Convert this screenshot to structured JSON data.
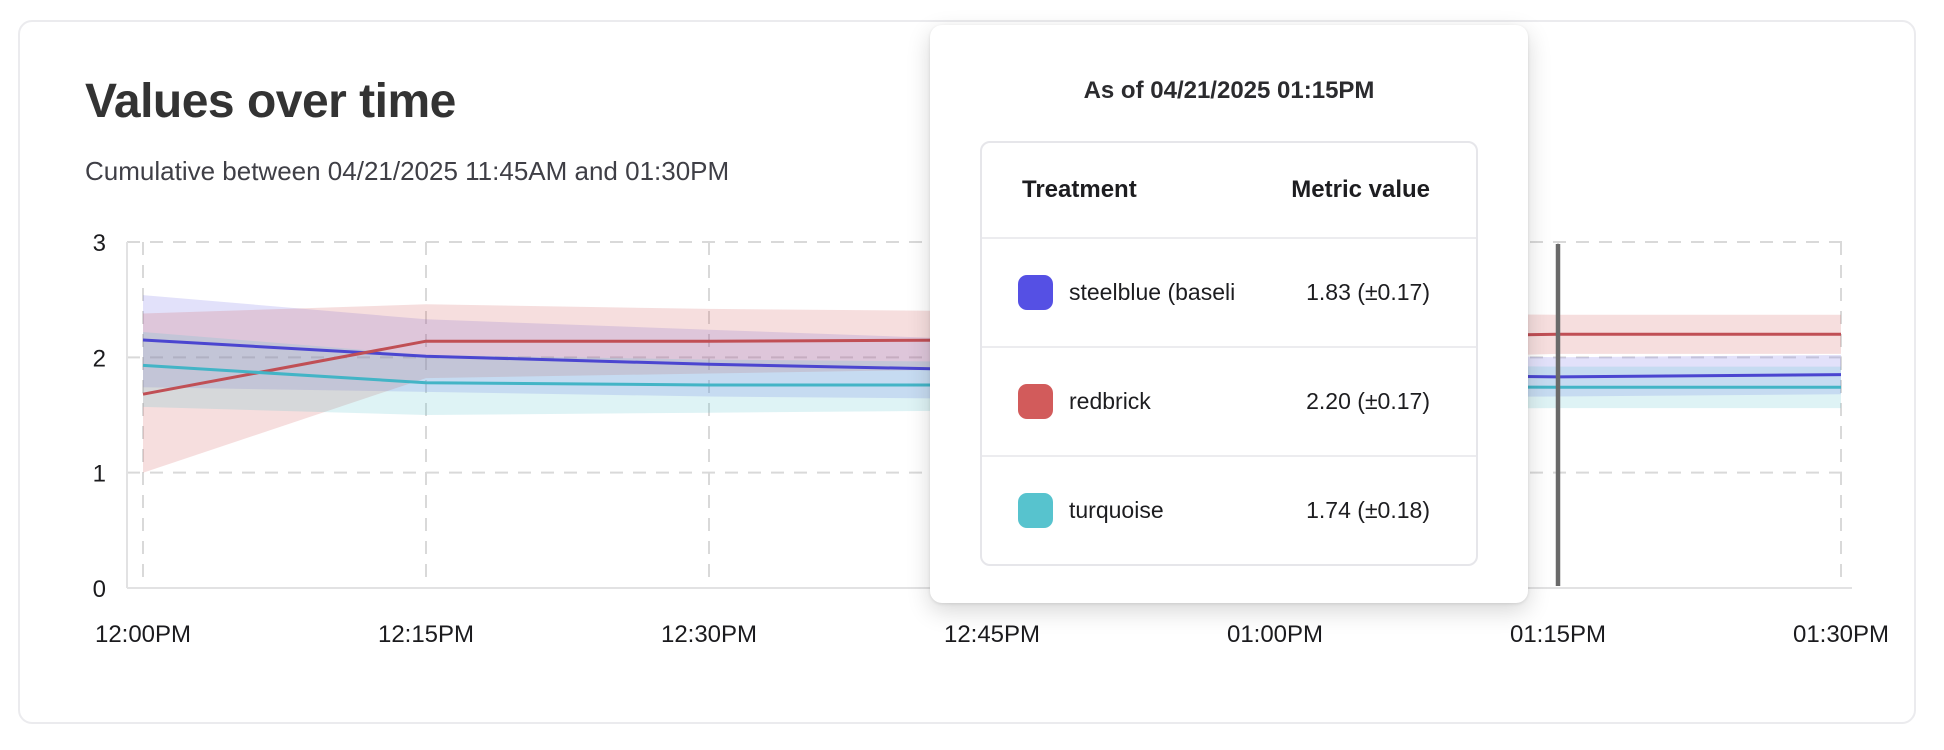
{
  "page": {
    "title": "Values over time",
    "subtitle": "Cumulative between 04/21/2025 11:45AM and 01:30PM"
  },
  "tooltip": {
    "title": "As of 04/21/2025 01:15PM",
    "columns": [
      "Treatment",
      "Metric value"
    ],
    "rows": [
      {
        "swatch_color": "#5550e4",
        "label": "steelblue  (baseli",
        "value": "1.83 (±0.17)"
      },
      {
        "swatch_color": "#d25b5b",
        "label": "redbrick",
        "value": "2.20 (±0.17)"
      },
      {
        "swatch_color": "#57c3ce",
        "label": "turquoise",
        "value": "1.74 (±0.18)"
      }
    ]
  },
  "chart_data": {
    "type": "line",
    "title": "Values over time",
    "subtitle": "Cumulative between 04/21/2025 11:45AM and 01:30PM",
    "x": [
      "12:00PM",
      "12:15PM",
      "12:30PM",
      "12:45PM",
      "01:00PM",
      "01:15PM",
      "01:30PM"
    ],
    "y_ticks": [
      0,
      1,
      2,
      3
    ],
    "y_tick_labels": [
      "0",
      "1",
      "2",
      "3"
    ],
    "ylim": [
      0,
      3
    ],
    "grid": "dashed",
    "legend_position": "none",
    "hover": {
      "x_label": "01:15PM",
      "index": 5,
      "cursor_color": "#6a6a6a"
    },
    "series": [
      {
        "name": "steelblue (baseline)",
        "line_color": "#4b46d0",
        "band_color": "rgba(94,88,230,0.18)",
        "values": [
          2.15,
          2.01,
          1.94,
          1.89,
          1.86,
          1.83,
          1.85
        ],
        "upper": [
          2.54,
          2.33,
          2.24,
          2.15,
          2.05,
          2.0,
          2.02
        ],
        "lower": [
          1.74,
          1.7,
          1.66,
          1.64,
          1.65,
          1.66,
          1.68
        ]
      },
      {
        "name": "redbrick",
        "line_color": "#c04f55",
        "band_color": "rgba(208,90,92,0.20)",
        "values": [
          1.68,
          2.14,
          2.14,
          2.15,
          2.17,
          2.2,
          2.2
        ],
        "upper": [
          2.38,
          2.46,
          2.42,
          2.4,
          2.38,
          2.37,
          2.37
        ],
        "lower": [
          1.0,
          1.82,
          1.86,
          1.9,
          1.97,
          2.03,
          2.03
        ]
      },
      {
        "name": "turquoise",
        "line_color": "#43b4c6",
        "band_color": "rgba(88,195,207,0.20)",
        "values": [
          1.93,
          1.78,
          1.76,
          1.76,
          1.75,
          1.74,
          1.74
        ],
        "upper": [
          2.22,
          2.02,
          1.98,
          1.96,
          1.94,
          1.92,
          1.92
        ],
        "lower": [
          1.57,
          1.5,
          1.52,
          1.54,
          1.55,
          1.56,
          1.56
        ]
      }
    ]
  }
}
